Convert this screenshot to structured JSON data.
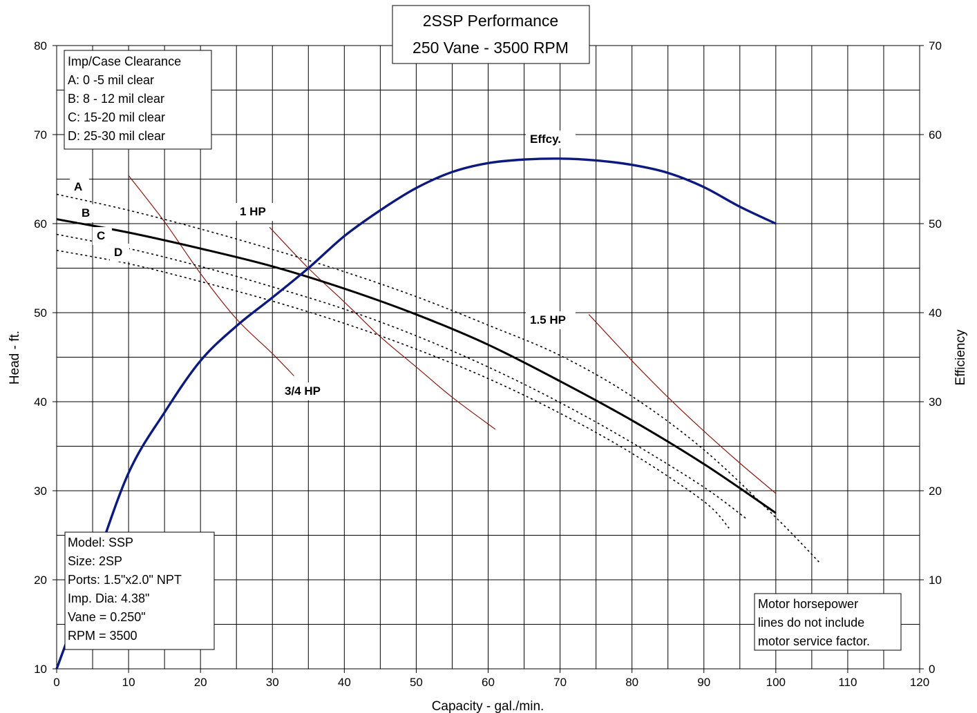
{
  "chart_data": {
    "type": "line",
    "title": [
      "2SSP Performance",
      "250 Vane - 3500 RPM"
    ],
    "xlabel": "Capacity - gal./min.",
    "ylabel": "Head - ft.",
    "y2label": "Efficiency",
    "xlim": [
      0,
      120
    ],
    "ylim": [
      10,
      80
    ],
    "y2lim": [
      0,
      70
    ],
    "x_ticks": [
      0,
      10,
      20,
      30,
      40,
      50,
      60,
      70,
      80,
      90,
      100,
      110,
      120
    ],
    "y_ticks": [
      10,
      20,
      30,
      40,
      50,
      60,
      70,
      80
    ],
    "y2_ticks": [
      0,
      10,
      20,
      30,
      40,
      50,
      60,
      70
    ],
    "grid": true,
    "series": [
      {
        "name": "A",
        "style": "dotted",
        "color": "#000000",
        "axis": "left",
        "x": [
          0,
          10,
          20,
          30,
          40,
          50,
          60,
          70,
          80,
          90,
          100,
          106
        ],
        "y": [
          63.3,
          61.5,
          59.4,
          57.1,
          54.6,
          51.8,
          48.6,
          45.2,
          40.6,
          34.6,
          27.0,
          22.0
        ]
      },
      {
        "name": "B",
        "style": "solid",
        "color": "#000000",
        "axis": "left",
        "x": [
          0,
          10,
          20,
          30,
          40,
          50,
          60,
          70,
          80,
          90,
          100
        ],
        "y": [
          60.5,
          59.0,
          57.2,
          55.2,
          52.7,
          49.8,
          46.4,
          42.3,
          37.9,
          33.0,
          27.5
        ]
      },
      {
        "name": "C",
        "style": "dotted",
        "color": "#000000",
        "axis": "left",
        "x": [
          0,
          10,
          20,
          30,
          40,
          50,
          60,
          70,
          80,
          90,
          96
        ],
        "y": [
          58.8,
          57.2,
          55.2,
          52.9,
          50.4,
          47.4,
          43.9,
          39.9,
          35.4,
          30.4,
          26.8
        ]
      },
      {
        "name": "D",
        "style": "dotted",
        "color": "#000000",
        "axis": "left",
        "x": [
          0,
          10,
          20,
          30,
          40,
          50,
          60,
          70,
          80,
          90,
          93.5
        ],
        "y": [
          57.0,
          55.5,
          53.5,
          51.3,
          48.8,
          45.9,
          42.6,
          38.7,
          34.2,
          28.8,
          25.8
        ]
      },
      {
        "name": "Effcy.",
        "style": "solid",
        "color": "#0c1a80",
        "axis": "right",
        "x": [
          0,
          5,
          10,
          15,
          20,
          25,
          30,
          35,
          40,
          45,
          50,
          55,
          60,
          65,
          70,
          75,
          80,
          85,
          90,
          95,
          100
        ],
        "y": [
          0,
          11,
          22,
          28.8,
          34.6,
          38.5,
          41.7,
          45.0,
          48.6,
          51.5,
          54.0,
          55.8,
          56.8,
          57.2,
          57.3,
          57.1,
          56.6,
          55.7,
          54.1,
          51.9,
          50.0
        ]
      }
    ],
    "hp_lines": [
      {
        "name": "3/4 HP",
        "color": "#8a1a10",
        "x": [
          10,
          15,
          20,
          25,
          30,
          33
        ],
        "y": [
          65.4,
          60.2,
          54.4,
          49.3,
          45.4,
          42.9
        ]
      },
      {
        "name": "1 HP",
        "color": "#8a1a10",
        "x": [
          29.6,
          35,
          40,
          45,
          50,
          55,
          61
        ],
        "y": [
          59.6,
          55.0,
          51.2,
          47.3,
          43.9,
          40.5,
          36.9
        ]
      },
      {
        "name": "1.5 HP",
        "color": "#8a1a10",
        "x": [
          74,
          80,
          85,
          90,
          95,
          100
        ],
        "y": [
          49.8,
          44.6,
          40.5,
          36.7,
          33.1,
          29.7
        ]
      }
    ],
    "curve_labels": {
      "A": "A",
      "B": "B",
      "C": "C",
      "D": "D",
      "effcy": "Effcy.",
      "hp_075": "3/4  HP",
      "hp_1": "1 HP",
      "hp_15": "1.5 HP"
    }
  },
  "legend_box": {
    "lines": [
      "Imp/Case Clearance",
      "A:  0 -5 mil clear",
      "B:  8 - 12 mil clear",
      "C:  15-20 mil clear",
      "D:  25-30 mil clear"
    ]
  },
  "model_box": {
    "lines": [
      "Model: SSP",
      "Size: 2SP",
      "Ports: 1.5\"x2.0\" NPT",
      "Imp. Dia: 4.38\"",
      "Vane = 0.250\"",
      "RPM = 3500"
    ]
  },
  "note_box": {
    "lines": [
      "Motor horsepower",
      "lines do not include",
      "motor service factor."
    ]
  }
}
